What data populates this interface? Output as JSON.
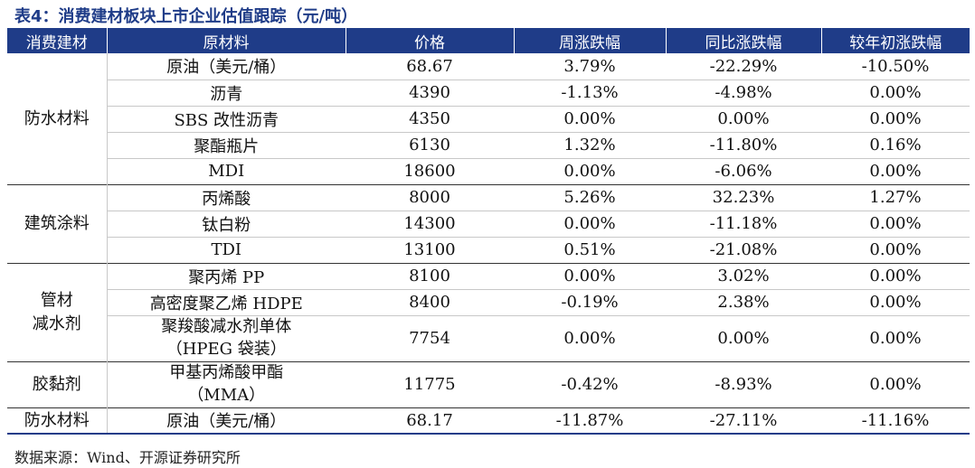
{
  "title": "表4：消费建材板块上市企业估值跟踪（元/吨）",
  "headers": [
    "消费建材",
    "原材料",
    "价格",
    "周涨跌幅",
    "同比涨跌幅",
    "较年初涨跌幅"
  ],
  "groups": {
    "waterproof": "防水材料",
    "coating": "建筑涂料",
    "pipe_line1": "管材",
    "pipe_line2": "减水剂",
    "adhesive": "胶黏剂",
    "waterproof2": "防水材料"
  },
  "rows": [
    {
      "material": "原油（美元/桶）",
      "price": "68.67",
      "weekly": "3.79%",
      "yoy": "-22.29%",
      "ytd": "-10.50%"
    },
    {
      "material": "沥青",
      "price": "4390",
      "weekly": "-1.13%",
      "yoy": "-4.98%",
      "ytd": "0.00%"
    },
    {
      "material": "SBS 改性沥青",
      "price": "4350",
      "weekly": "0.00%",
      "yoy": "0.00%",
      "ytd": "0.00%"
    },
    {
      "material": "聚酯瓶片",
      "price": "6130",
      "weekly": "1.32%",
      "yoy": "-11.80%",
      "ytd": "0.16%"
    },
    {
      "material": "MDI",
      "price": "18600",
      "weekly": "0.00%",
      "yoy": "-6.06%",
      "ytd": "0.00%"
    },
    {
      "material": "丙烯酸",
      "price": "8000",
      "weekly": "5.26%",
      "yoy": "32.23%",
      "ytd": "1.27%"
    },
    {
      "material": "钛白粉",
      "price": "14300",
      "weekly": "0.00%",
      "yoy": "-11.18%",
      "ytd": "0.00%"
    },
    {
      "material": "TDI",
      "price": "13100",
      "weekly": "0.51%",
      "yoy": "-21.08%",
      "ytd": "0.00%"
    },
    {
      "material": "聚丙烯 PP",
      "price": "8100",
      "weekly": "0.00%",
      "yoy": "3.02%",
      "ytd": "0.00%"
    },
    {
      "material": "高密度聚乙烯 HDPE",
      "price": "8400",
      "weekly": "-0.19%",
      "yoy": "2.38%",
      "ytd": "0.00%"
    },
    {
      "material_line1": "聚羧酸减水剂单体",
      "material_line2": "（HPEG 袋装）",
      "price": "7754",
      "weekly": "0.00%",
      "yoy": "0.00%",
      "ytd": "0.00%"
    },
    {
      "material_line1": "甲基丙烯酸甲酯",
      "material_line2": "（MMA）",
      "price": "11775",
      "weekly": "-0.42%",
      "yoy": "-8.93%",
      "ytd": "0.00%"
    },
    {
      "material": "原油（美元/桶）",
      "price": "68.17",
      "weekly": "-11.87%",
      "yoy": "-27.11%",
      "ytd": "-11.16%"
    }
  ],
  "source": "数据来源：Wind、开源证券研究所",
  "colors": {
    "header_bg": "#1f3c88",
    "title": "#1f3c88"
  }
}
